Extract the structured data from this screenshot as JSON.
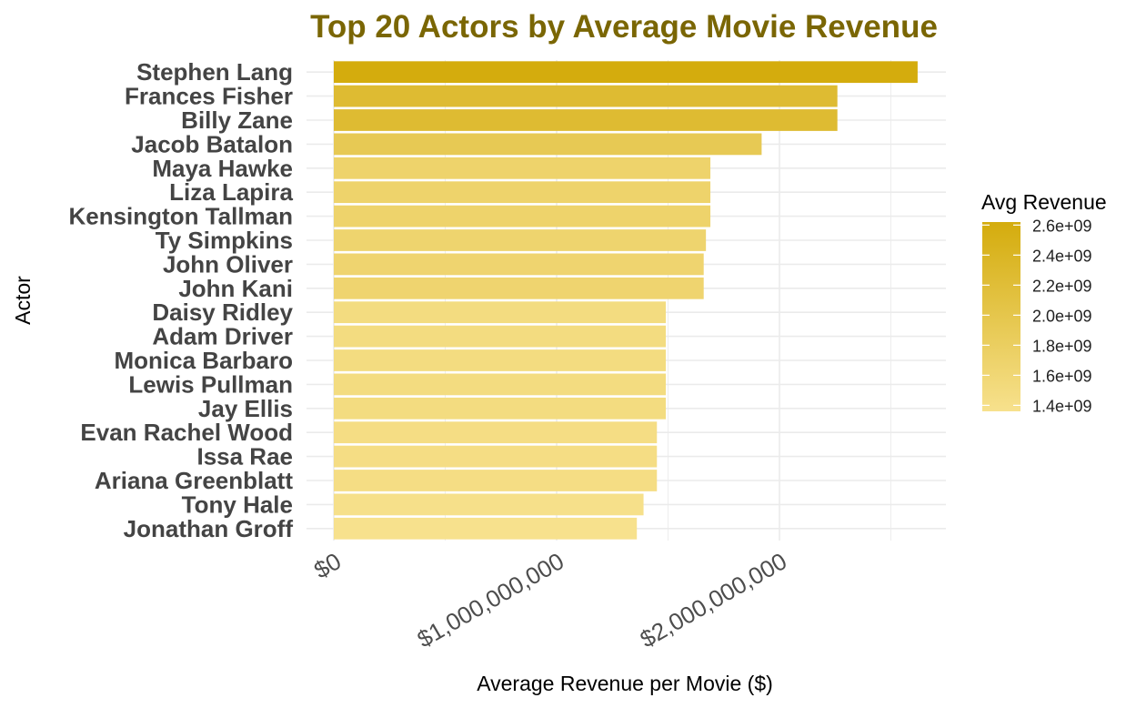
{
  "chart_data": {
    "type": "bar",
    "orientation": "horizontal",
    "title": "Top 20 Actors by Average Movie Revenue",
    "xlabel": "Average Revenue per Movie ($)",
    "ylabel": "Actor",
    "xlim": [
      0,
      2750000000
    ],
    "x_ticks": [
      0,
      1000000000,
      2000000000
    ],
    "x_tick_labels": [
      "$0",
      "$1,000,000,000",
      "$2,000,000,000"
    ],
    "grid": true,
    "categories": [
      "Stephen Lang",
      "Frances Fisher",
      "Billy Zane",
      "Jacob Batalon",
      "Maya Hawke",
      "Liza Lapira",
      "Kensington Tallman",
      "Ty Simpkins",
      "John Oliver",
      "John Kani",
      "Daisy Ridley",
      "Adam Driver",
      "Monica Barbaro",
      "Lewis Pullman",
      "Jay Ellis",
      "Evan Rachel Wood",
      "Issa Rae",
      "Ariana Greenblatt",
      "Tony Hale",
      "Jonathan Groff"
    ],
    "values": [
      2620000000,
      2260000000,
      2260000000,
      1920000000,
      1690000000,
      1690000000,
      1690000000,
      1670000000,
      1660000000,
      1660000000,
      1490000000,
      1490000000,
      1490000000,
      1490000000,
      1490000000,
      1450000000,
      1450000000,
      1450000000,
      1390000000,
      1360000000
    ],
    "legend": {
      "title": "Avg Revenue",
      "position": "right",
      "breaks": [
        2600000000,
        2400000000,
        2200000000,
        2000000000,
        1800000000,
        1600000000,
        1400000000
      ],
      "labels": [
        "2.6e+09",
        "2.4e+09",
        "2.2e+09",
        "2.0e+09",
        "1.8e+09",
        "1.6e+09",
        "1.4e+09"
      ],
      "range": [
        1360000000,
        2620000000
      ]
    },
    "colors": {
      "title": "#7a6604",
      "high": "#d4ac0d",
      "low": "#f7e18d",
      "grid": "#ebebeb"
    }
  }
}
